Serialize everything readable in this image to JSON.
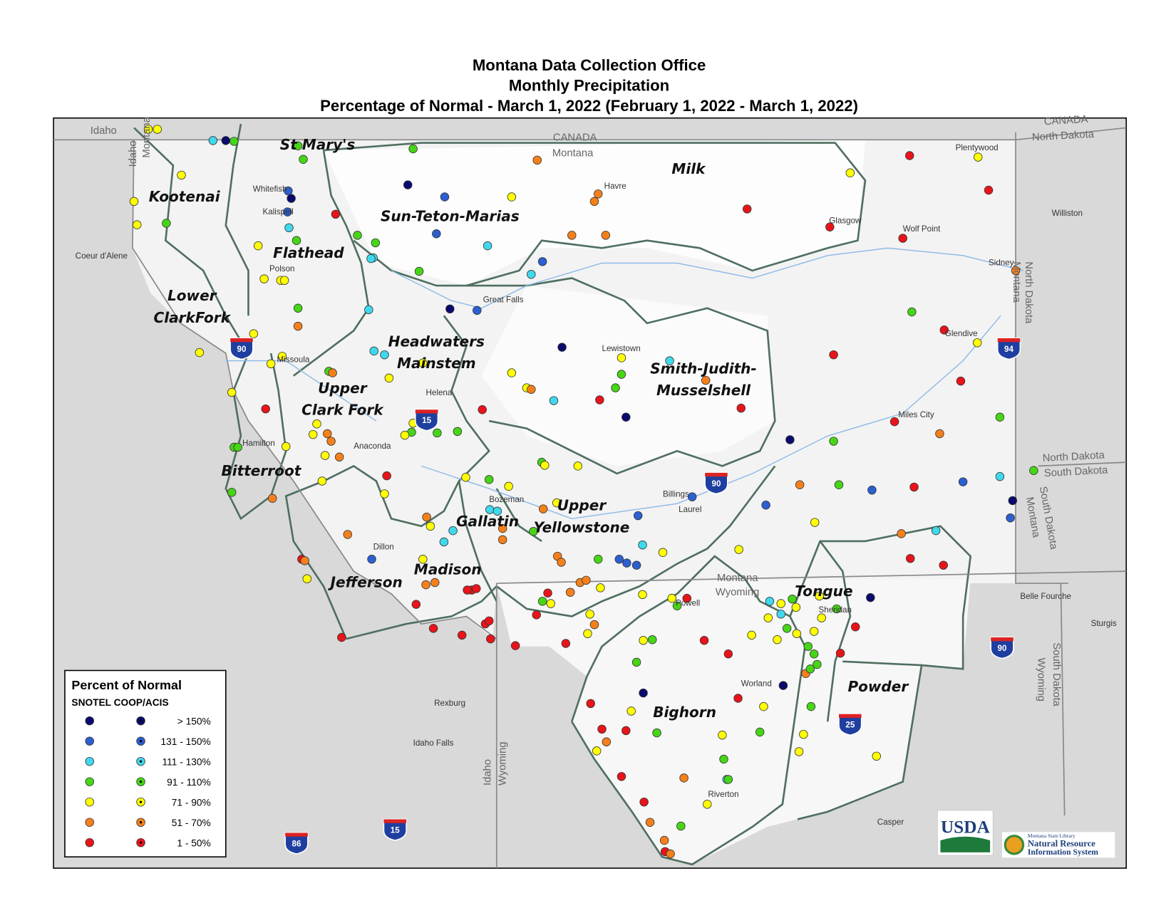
{
  "header": {
    "title": [
      "Montana Data Collection Office",
      "Monthly Precipitation",
      "Percentage of Normal - March 1, 2022 (February 1, 2022 - March 1, 2022)"
    ]
  },
  "basins": [
    [
      "Kootenai"
    ],
    [
      "St Mary's"
    ],
    [
      "Flathead"
    ],
    [
      "Sun-Teton-Marias"
    ],
    [
      "Milk"
    ],
    [
      "Lower",
      "ClarkFork"
    ],
    [
      "Headwaters",
      "Mainstem"
    ],
    [
      "Upper",
      "Clark Fork"
    ],
    [
      "Smith-Judith-",
      "Musselshell"
    ],
    [
      "Bitterroot"
    ],
    [
      "Gallatin"
    ],
    [
      "Upper",
      "Yellowstone"
    ],
    [
      "Jefferson"
    ],
    [
      "Madison"
    ],
    [
      "Tongue"
    ],
    [
      "Powder"
    ],
    [
      "Bighorn"
    ]
  ],
  "cities": [
    "Havre",
    "Glasgow",
    "Plentywood",
    "Wolf Point",
    "Williston",
    "Sidney",
    "Glendive",
    "Miles City",
    "Lewistown",
    "Great Falls",
    "Helena",
    "Missoula",
    "Hamilton",
    "Anaconda",
    "Dillon",
    "Bozeman",
    "Billings",
    "Laurel",
    "Whitefish",
    "Kalispell",
    "Polson",
    "Coeur d'Alene",
    "Powell",
    "Sheridan",
    "Worland",
    "Riverton",
    "Casper",
    "Rexburg",
    "Idaho Falls",
    "Belle Fourche",
    "Sturgis"
  ],
  "states": [
    "Idaho",
    "Idaho",
    "Montana",
    "CANADA",
    "Montana",
    "CANADA",
    "North Dakota",
    "North Dakota",
    "Montana",
    "North Dakota",
    "South Dakota",
    "South Dakota",
    "Montana",
    "Montana",
    "Wyoming",
    "Idaho",
    "Wyoming",
    "Wyoming",
    "South Dakota"
  ],
  "interstates": [
    "90",
    "15",
    "94",
    "90",
    "90",
    "25",
    "15",
    "86"
  ],
  "legend": {
    "title": "Percent of Normal",
    "columns": "SNOTEL COOP/ACIS",
    "classes": [
      {
        "label": "> 150%",
        "color": "#0a0a6e"
      },
      {
        "label": "131 - 150%",
        "color": "#2c5fd0"
      },
      {
        "label": "111 - 130%",
        "color": "#40d8ec"
      },
      {
        "label": "91 - 110%",
        "color": "#46d616"
      },
      {
        "label": "71 - 90%",
        "color": "#ffff00"
      },
      {
        "label": "51 - 70%",
        "color": "#f5801a"
      },
      {
        "label": "1 - 50%",
        "color": "#e8141a"
      }
    ]
  },
  "logos": {
    "usda": "USDA",
    "nris": [
      "Montana State Library",
      "Natural Resource",
      "Information System"
    ]
  }
}
